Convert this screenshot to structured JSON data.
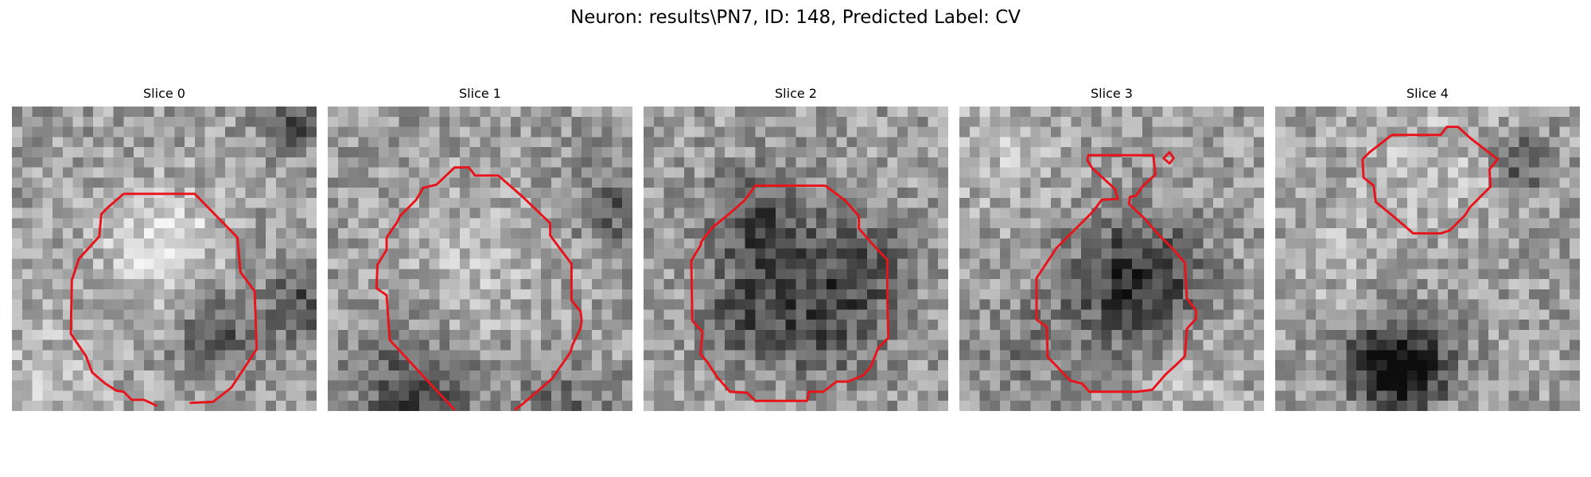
{
  "figure": {
    "title": "Neuron: results\\PN7, ID: 148, Predicted Label: CV"
  },
  "panels": [
    {
      "title": "Slice 0"
    },
    {
      "title": "Slice 1"
    },
    {
      "title": "Slice 2"
    },
    {
      "title": "Slice 3"
    },
    {
      "title": "Slice 4"
    }
  ],
  "colors": {
    "contour": "#e8141c",
    "colormap": "gray"
  }
}
